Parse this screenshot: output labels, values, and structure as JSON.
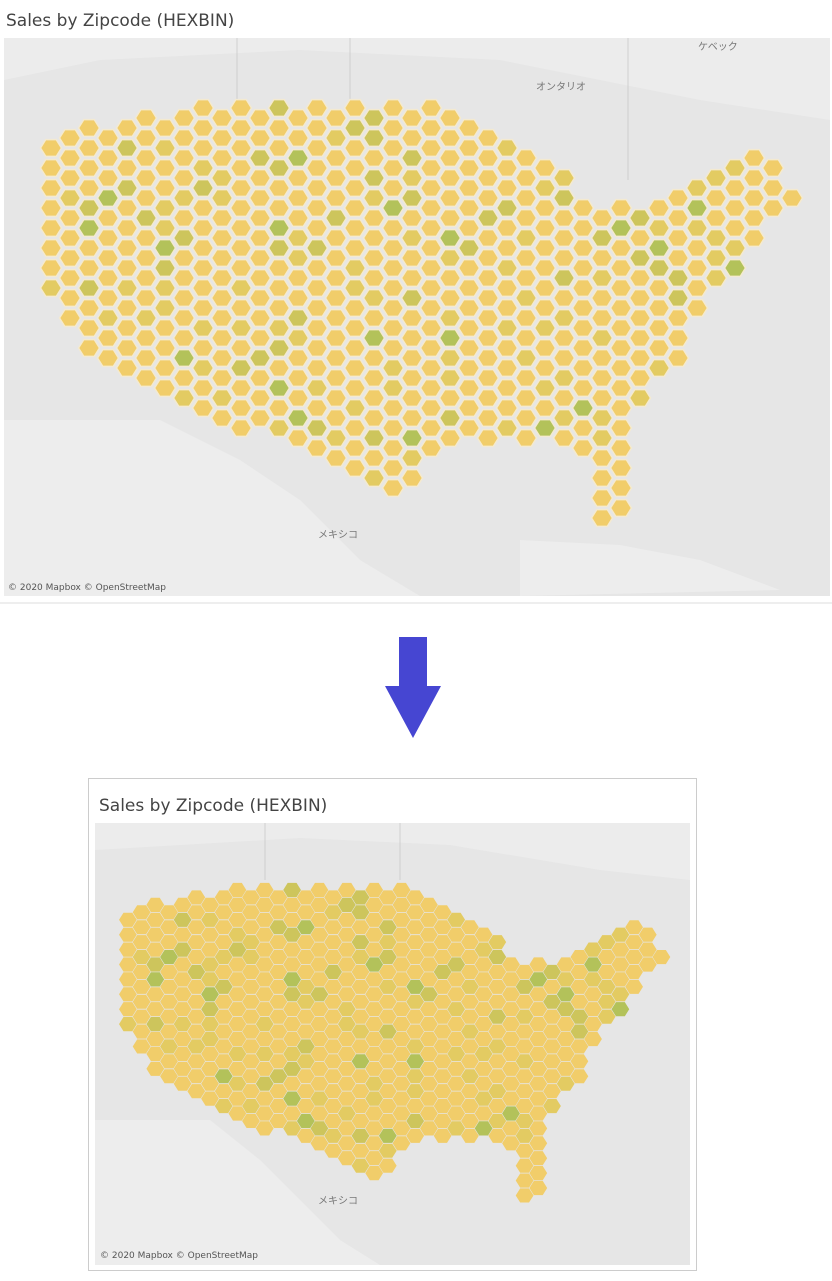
{
  "top": {
    "title": "Sales by Zipcode (HEXBIN)",
    "place_labels": [
      "ケベック",
      "オンタリオ",
      "メキシコ"
    ],
    "attribution": "© 2020 Mapbox © OpenStreetMap"
  },
  "bottom": {
    "title": "Sales by Zipcode (HEXBIN)",
    "place_labels": [
      "メキシコ"
    ],
    "attribution": "© 2020 Mapbox © OpenStreetMap"
  }
}
